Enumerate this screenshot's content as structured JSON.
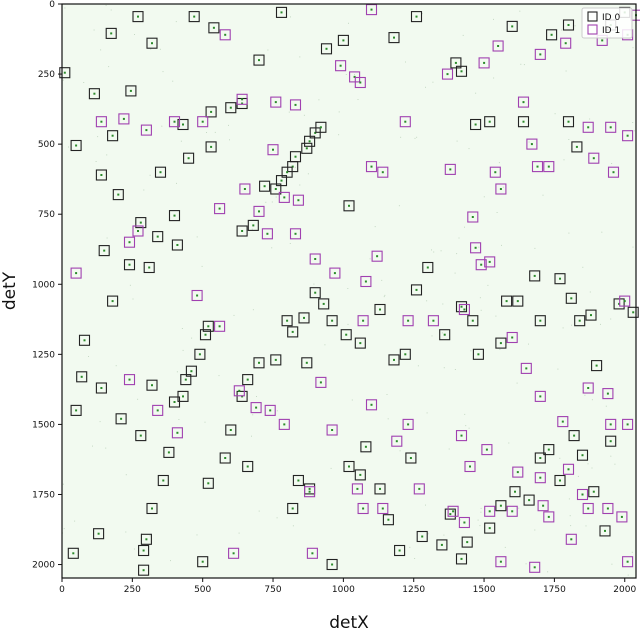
{
  "chart_data": {
    "type": "scatter",
    "title": "",
    "xlabel": "detX",
    "ylabel": "detY",
    "xlim": [
      0,
      2040
    ],
    "ylim": [
      0,
      2048
    ],
    "y_inverted": true,
    "xticks": [
      0,
      250,
      500,
      750,
      1000,
      1250,
      1500,
      1750,
      2000
    ],
    "yticks": [
      0,
      250,
      500,
      750,
      1000,
      1250,
      1500,
      1750,
      2000
    ],
    "grid": false,
    "background_color": "#f2faf0",
    "legend_position": "top-right",
    "series": [
      {
        "name": "ID 0",
        "marker": "square",
        "color": "#222222",
        "points": [
          [
            10,
            245
          ],
          [
            50,
            505
          ],
          [
            115,
            320
          ],
          [
            175,
            105
          ],
          [
            245,
            310
          ],
          [
            270,
            45
          ],
          [
            320,
            140
          ],
          [
            470,
            45
          ],
          [
            540,
            85
          ],
          [
            700,
            200
          ],
          [
            780,
            30
          ],
          [
            940,
            160
          ],
          [
            1000,
            130
          ],
          [
            1180,
            120
          ],
          [
            1260,
            45
          ],
          [
            1600,
            80
          ],
          [
            1740,
            110
          ],
          [
            1800,
            75
          ],
          [
            1950,
            75
          ],
          [
            2000,
            30
          ],
          [
            180,
            470
          ],
          [
            140,
            610
          ],
          [
            200,
            680
          ],
          [
            350,
            600
          ],
          [
            450,
            550
          ],
          [
            430,
            430
          ],
          [
            530,
            385
          ],
          [
            530,
            510
          ],
          [
            600,
            370
          ],
          [
            640,
            355
          ],
          [
            820,
            580
          ],
          [
            830,
            545
          ],
          [
            870,
            515
          ],
          [
            880,
            490
          ],
          [
            900,
            460
          ],
          [
            920,
            440
          ],
          [
            760,
            660
          ],
          [
            780,
            630
          ],
          [
            800,
            600
          ],
          [
            150,
            880
          ],
          [
            180,
            1060
          ],
          [
            240,
            930
          ],
          [
            280,
            780
          ],
          [
            310,
            940
          ],
          [
            340,
            830
          ],
          [
            400,
            755
          ],
          [
            410,
            860
          ],
          [
            640,
            810
          ],
          [
            680,
            790
          ],
          [
            720,
            650
          ],
          [
            1020,
            720
          ],
          [
            1400,
            210
          ],
          [
            1420,
            240
          ],
          [
            1470,
            430
          ],
          [
            1520,
            420
          ],
          [
            1640,
            420
          ],
          [
            1800,
            420
          ],
          [
            1830,
            510
          ],
          [
            50,
            1450
          ],
          [
            70,
            1330
          ],
          [
            80,
            1200
          ],
          [
            140,
            1370
          ],
          [
            210,
            1480
          ],
          [
            280,
            1540
          ],
          [
            320,
            1360
          ],
          [
            400,
            1420
          ],
          [
            430,
            1400
          ],
          [
            440,
            1340
          ],
          [
            460,
            1310
          ],
          [
            490,
            1250
          ],
          [
            510,
            1180
          ],
          [
            520,
            1150
          ],
          [
            600,
            1520
          ],
          [
            640,
            1400
          ],
          [
            660,
            1340
          ],
          [
            700,
            1280
          ],
          [
            760,
            1270
          ],
          [
            800,
            1130
          ],
          [
            820,
            1170
          ],
          [
            870,
            1280
          ],
          [
            900,
            1030
          ],
          [
            930,
            1070
          ],
          [
            960,
            1130
          ],
          [
            860,
            1120
          ],
          [
            1010,
            1180
          ],
          [
            1060,
            1210
          ],
          [
            1130,
            1090
          ],
          [
            1180,
            1270
          ],
          [
            1220,
            1250
          ],
          [
            1260,
            1020
          ],
          [
            1300,
            940
          ],
          [
            1360,
            1180
          ],
          [
            1420,
            1080
          ],
          [
            1460,
            1130
          ],
          [
            1480,
            1250
          ],
          [
            1560,
            1210
          ],
          [
            1580,
            1060
          ],
          [
            1620,
            1060
          ],
          [
            1680,
            970
          ],
          [
            1700,
            1130
          ],
          [
            1770,
            980
          ],
          [
            1810,
            1050
          ],
          [
            1840,
            1130
          ],
          [
            1880,
            1110
          ],
          [
            1900,
            1290
          ],
          [
            1980,
            1070
          ],
          [
            2030,
            1100
          ],
          [
            360,
            1700
          ],
          [
            380,
            1600
          ],
          [
            320,
            1800
          ],
          [
            290,
            1950
          ],
          [
            300,
            1910
          ],
          [
            520,
            1710
          ],
          [
            500,
            1990
          ],
          [
            580,
            1620
          ],
          [
            660,
            1650
          ],
          [
            820,
            1800
          ],
          [
            840,
            1700
          ],
          [
            880,
            1730
          ],
          [
            960,
            2000
          ],
          [
            1020,
            1650
          ],
          [
            1080,
            1580
          ],
          [
            1060,
            1680
          ],
          [
            1130,
            1730
          ],
          [
            1160,
            1840
          ],
          [
            1200,
            1950
          ],
          [
            1240,
            1620
          ],
          [
            1280,
            1900
          ],
          [
            1350,
            1930
          ],
          [
            1380,
            1820
          ],
          [
            1420,
            1980
          ],
          [
            1440,
            1920
          ],
          [
            1520,
            1870
          ],
          [
            1560,
            1790
          ],
          [
            1610,
            1740
          ],
          [
            1660,
            1770
          ],
          [
            1700,
            1620
          ],
          [
            1730,
            1590
          ],
          [
            1770,
            1700
          ],
          [
            1820,
            1540
          ],
          [
            1850,
            1610
          ],
          [
            1890,
            1740
          ],
          [
            1930,
            1880
          ],
          [
            1950,
            1560
          ],
          [
            40,
            1960
          ],
          [
            130,
            1890
          ],
          [
            290,
            2020
          ]
        ]
      },
      {
        "name": "ID 1",
        "marker": "square",
        "color": "#a040b0",
        "points": [
          [
            1100,
            20
          ],
          [
            580,
            110
          ],
          [
            990,
            220
          ],
          [
            1040,
            260
          ],
          [
            1060,
            280
          ],
          [
            1370,
            250
          ],
          [
            1500,
            210
          ],
          [
            1550,
            150
          ],
          [
            1700,
            180
          ],
          [
            1790,
            140
          ],
          [
            1920,
            130
          ],
          [
            2010,
            110
          ],
          [
            2040,
            40
          ],
          [
            140,
            420
          ],
          [
            220,
            410
          ],
          [
            300,
            450
          ],
          [
            400,
            420
          ],
          [
            500,
            420
          ],
          [
            640,
            340
          ],
          [
            760,
            350
          ],
          [
            830,
            360
          ],
          [
            750,
            520
          ],
          [
            790,
            690
          ],
          [
            840,
            700
          ],
          [
            1100,
            580
          ],
          [
            1140,
            600
          ],
          [
            1220,
            420
          ],
          [
            1380,
            590
          ],
          [
            1460,
            760
          ],
          [
            1540,
            600
          ],
          [
            1560,
            660
          ],
          [
            1640,
            350
          ],
          [
            1670,
            500
          ],
          [
            1690,
            580
          ],
          [
            1730,
            580
          ],
          [
            1870,
            440
          ],
          [
            1890,
            550
          ],
          [
            1950,
            440
          ],
          [
            1960,
            600
          ],
          [
            2010,
            470
          ],
          [
            50,
            960
          ],
          [
            240,
            850
          ],
          [
            270,
            810
          ],
          [
            480,
            1040
          ],
          [
            560,
            730
          ],
          [
            560,
            1150
          ],
          [
            650,
            660
          ],
          [
            700,
            740
          ],
          [
            730,
            820
          ],
          [
            830,
            820
          ],
          [
            900,
            910
          ],
          [
            970,
            960
          ],
          [
            1070,
            1130
          ],
          [
            1080,
            990
          ],
          [
            1120,
            900
          ],
          [
            1230,
            1130
          ],
          [
            1320,
            1130
          ],
          [
            1430,
            1090
          ],
          [
            1470,
            870
          ],
          [
            1490,
            930
          ],
          [
            1520,
            920
          ],
          [
            1600,
            1190
          ],
          [
            1650,
            1300
          ],
          [
            1700,
            1400
          ],
          [
            1780,
            1490
          ],
          [
            1870,
            1370
          ],
          [
            1940,
            1390
          ],
          [
            2000,
            1060
          ],
          [
            240,
            1340
          ],
          [
            340,
            1450
          ],
          [
            410,
            1530
          ],
          [
            630,
            1380
          ],
          [
            690,
            1440
          ],
          [
            740,
            1450
          ],
          [
            790,
            1500
          ],
          [
            920,
            1350
          ],
          [
            960,
            1520
          ],
          [
            1100,
            1430
          ],
          [
            1190,
            1560
          ],
          [
            1230,
            1500
          ],
          [
            1420,
            1540
          ],
          [
            1450,
            1650
          ],
          [
            1510,
            1590
          ],
          [
            1620,
            1670
          ],
          [
            1700,
            1690
          ],
          [
            1800,
            1660
          ],
          [
            1850,
            1750
          ],
          [
            1950,
            1500
          ],
          [
            2010,
            1500
          ],
          [
            610,
            1960
          ],
          [
            880,
            1740
          ],
          [
            890,
            1960
          ],
          [
            1050,
            1730
          ],
          [
            1070,
            1800
          ],
          [
            1140,
            1800
          ],
          [
            1270,
            1730
          ],
          [
            1390,
            1810
          ],
          [
            1430,
            1850
          ],
          [
            1520,
            1810
          ],
          [
            1600,
            1810
          ],
          [
            1710,
            1790
          ],
          [
            1730,
            1830
          ],
          [
            1810,
            1910
          ],
          [
            1870,
            1800
          ],
          [
            1940,
            1800
          ],
          [
            1990,
            1830
          ],
          [
            2010,
            1990
          ],
          [
            1680,
            2010
          ],
          [
            1560,
            1990
          ]
        ]
      }
    ]
  }
}
